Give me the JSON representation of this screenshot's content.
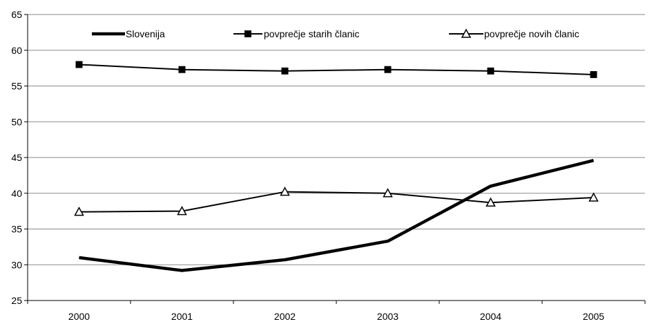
{
  "chart_data": {
    "type": "line",
    "x": [
      "2000",
      "2001",
      "2002",
      "2003",
      "2004",
      "2005"
    ],
    "ylim": [
      25,
      65
    ],
    "yticks": [
      "25",
      "30",
      "35",
      "40",
      "45",
      "50",
      "55",
      "60",
      "65"
    ],
    "grid": "horizontal",
    "legend": "top",
    "series": [
      {
        "name": "Slovenija",
        "values": [
          31.0,
          29.2,
          30.7,
          33.3,
          41.0,
          44.6
        ],
        "marker": "none",
        "line_color": "#000000",
        "line_style": "thick"
      },
      {
        "name": "povprečje starih članic",
        "values": [
          58.0,
          57.3,
          57.1,
          57.3,
          57.1,
          56.6
        ],
        "marker": "square",
        "line_color": "#000000",
        "line_style": "normal"
      },
      {
        "name": "povprečje novih članic",
        "values": [
          37.4,
          37.5,
          40.2,
          40.0,
          38.7,
          39.4
        ],
        "marker": "triangle",
        "line_color": "#000000",
        "line_style": "normal"
      }
    ]
  }
}
